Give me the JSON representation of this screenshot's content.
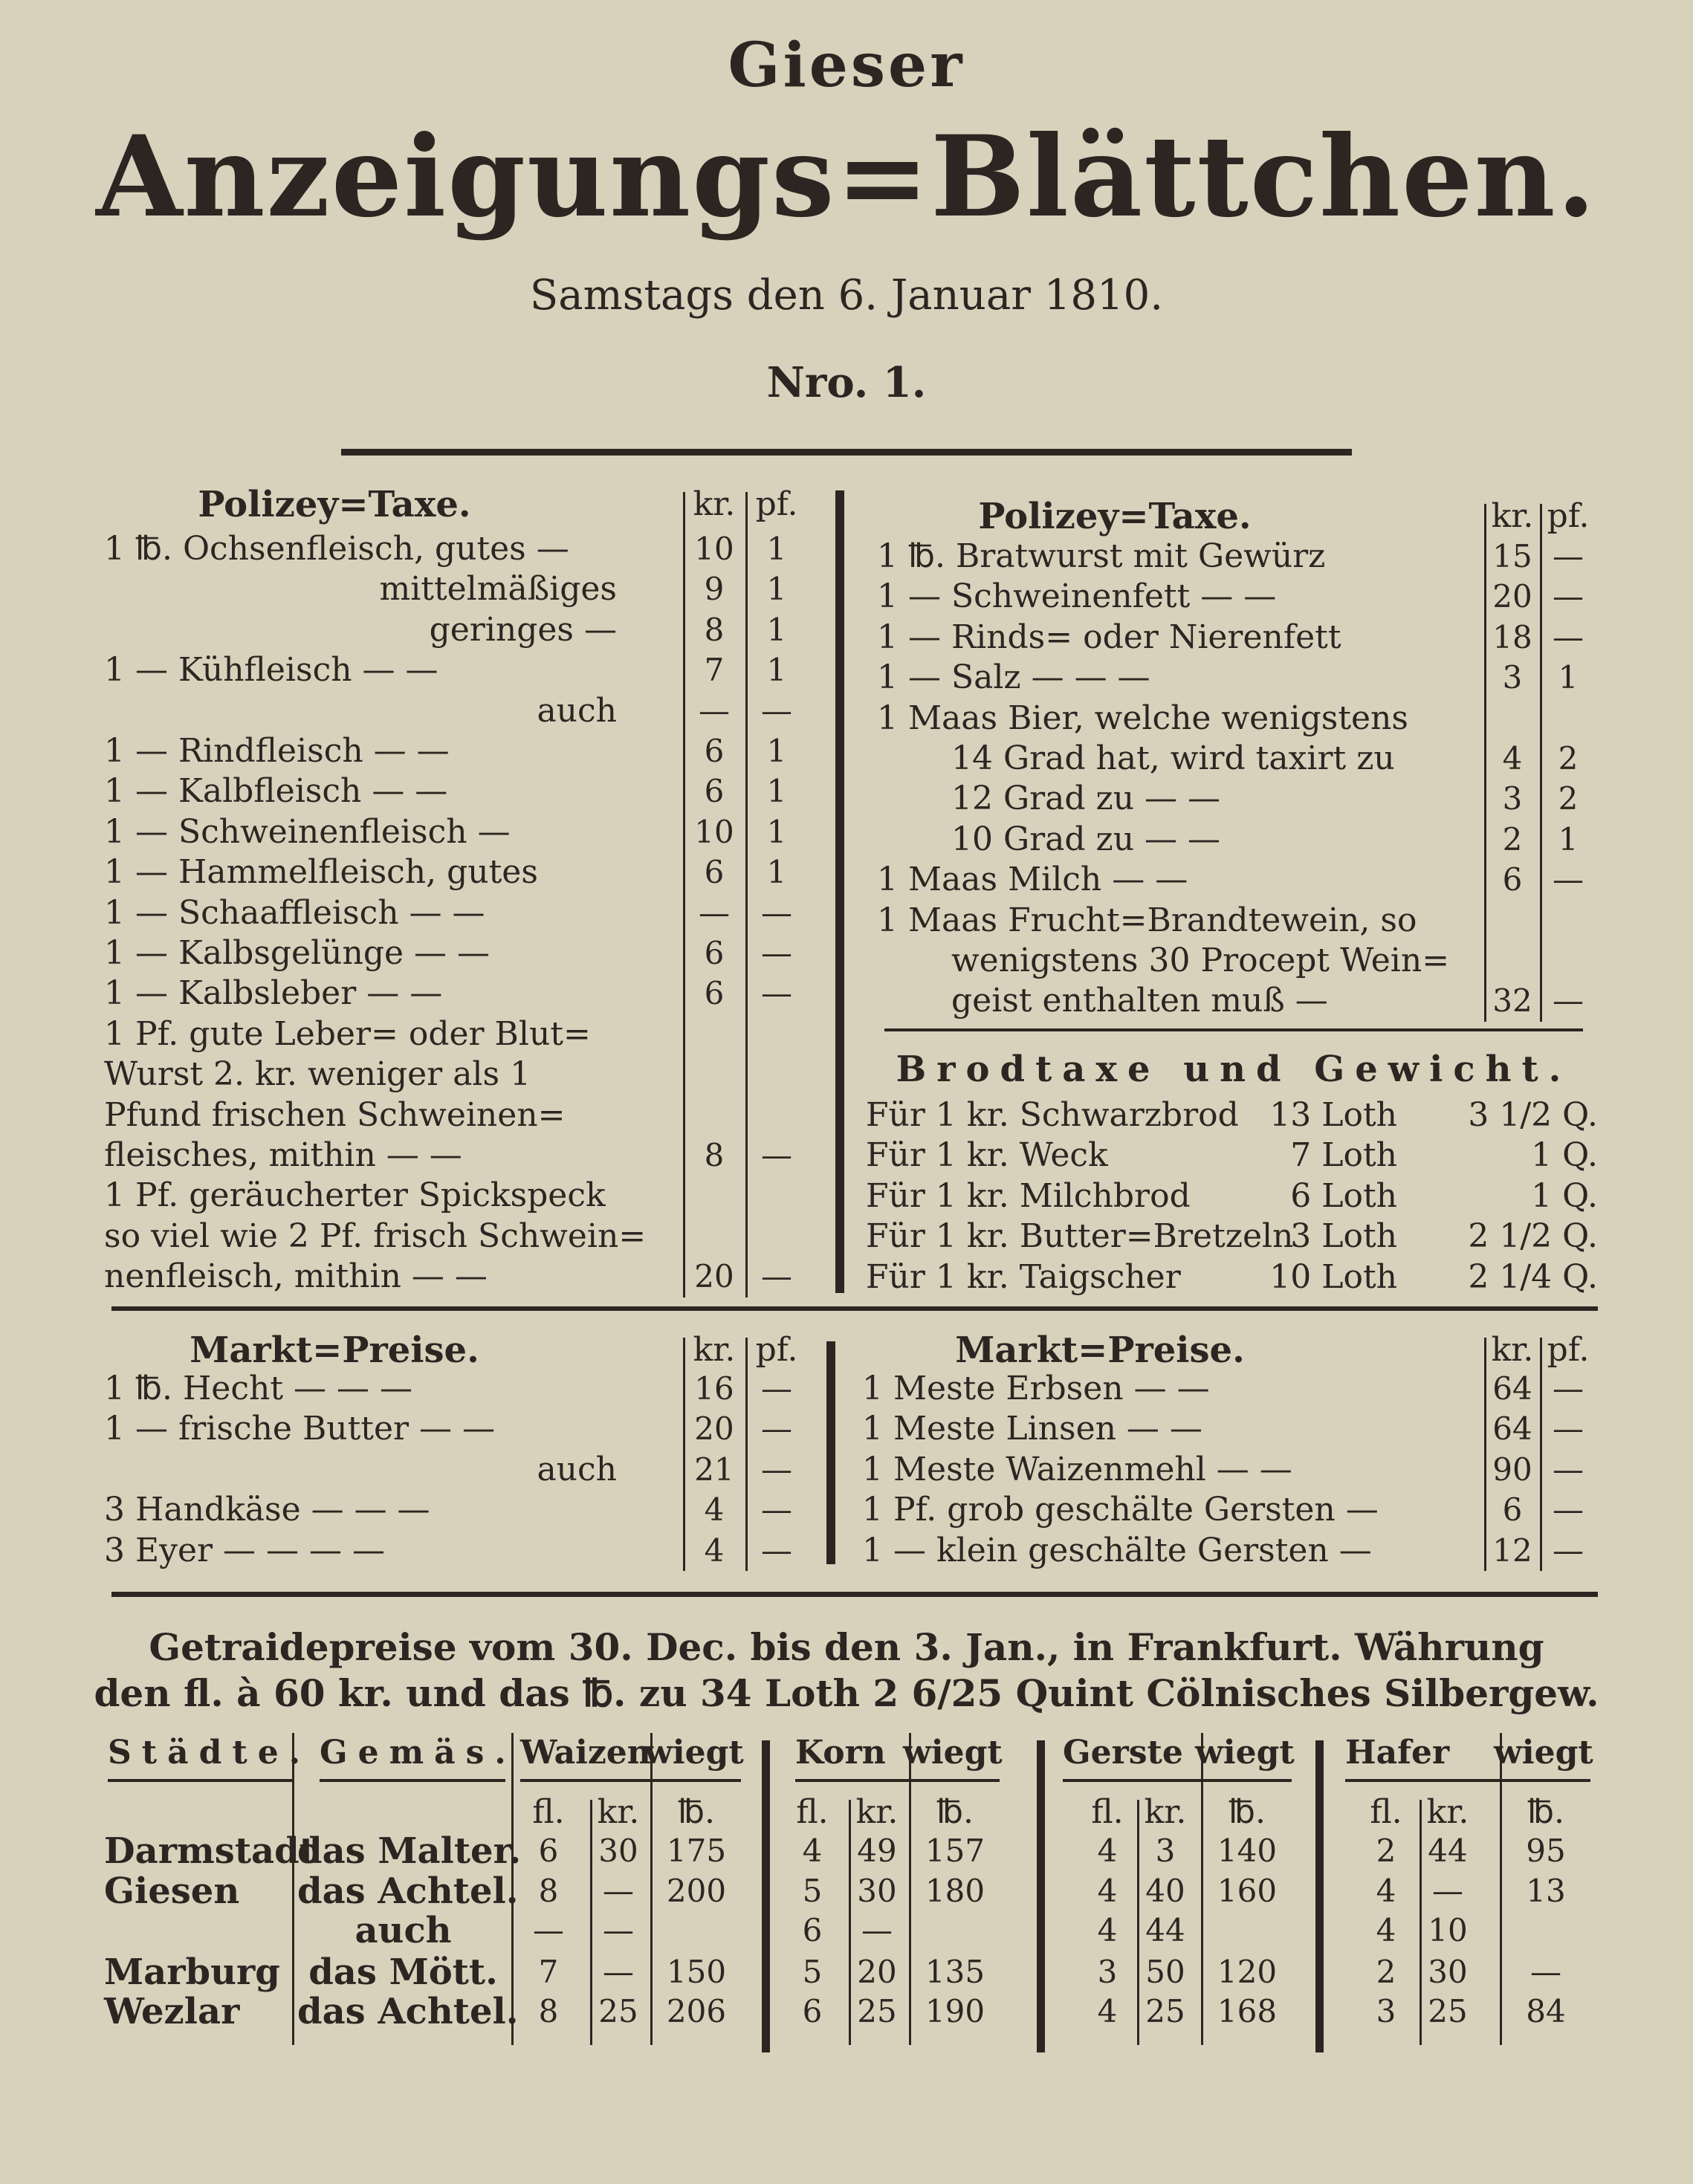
{
  "masthead": {
    "title_small": "Gieser",
    "title_large": "Anzeigungs=Blättchen.",
    "date": "Samstags den 6. Januar 1810.",
    "number": "Nro. 1."
  },
  "polizey_left": {
    "title": "Polizey=Taxe.",
    "col_kr": "kr.",
    "col_pf": "pf.",
    "rows": [
      {
        "label": "1 ℔. Ochsenfleisch, gutes —",
        "kr": "10",
        "pf": "1"
      },
      {
        "label": "mittelmäßiges",
        "kr": "9",
        "pf": "1"
      },
      {
        "label": "geringes —",
        "kr": "8",
        "pf": "1"
      },
      {
        "label": "1 — Kühfleisch     —     —",
        "kr": "7",
        "pf": "1"
      },
      {
        "label": "auch",
        "kr": "—",
        "pf": "—"
      },
      {
        "label": "1 — Rindfleisch     —     —",
        "kr": "6",
        "pf": "1"
      },
      {
        "label": "1 — Kalbfleisch     —     —",
        "kr": "6",
        "pf": "1"
      },
      {
        "label": "1 — Schweinenfleisch     —",
        "kr": "10",
        "pf": "1"
      },
      {
        "label": "1 — Hammelfleisch, gutes",
        "kr": "6",
        "pf": "1"
      },
      {
        "label": "1 — Schaaffleisch  —    —",
        "kr": "—",
        "pf": "—"
      },
      {
        "label": "1 — Kalbsgelünge —    —",
        "kr": "6",
        "pf": "—"
      },
      {
        "label": "1 — Kalbsleber    —    —",
        "kr": "6",
        "pf": "—"
      },
      {
        "label": "1 Pf. gute Leber= oder Blut=",
        "kr": "",
        "pf": ""
      },
      {
        "label": "Wurst 2. kr. weniger als 1",
        "kr": "",
        "pf": ""
      },
      {
        "label": "Pfund frischen Schweinen=",
        "kr": "",
        "pf": ""
      },
      {
        "label": "fleisches, mithin  —   —",
        "kr": "8",
        "pf": "—"
      },
      {
        "label": "1 Pf. geräucherter Spickspeck",
        "kr": "",
        "pf": ""
      },
      {
        "label": "so viel wie 2 Pf. frisch Schwein=",
        "kr": "",
        "pf": ""
      },
      {
        "label": "nenfleisch, mithin — —",
        "kr": "20",
        "pf": "—"
      }
    ]
  },
  "polizey_right": {
    "title": "Polizey=Taxe.",
    "col_kr": "kr.",
    "col_pf": "pf.",
    "rows": [
      {
        "label": "1 ℔. Bratwurst mit Gewürz",
        "kr": "15",
        "pf": "—"
      },
      {
        "label": "1 — Schweinenfett   —    —",
        "kr": "20",
        "pf": "—"
      },
      {
        "label": "1 — Rinds= oder Nierenfett",
        "kr": "18",
        "pf": "—"
      },
      {
        "label": "1 — Salz   —    —    —",
        "kr": "3",
        "pf": "1"
      },
      {
        "label": "1 Maas Bier, welche wenigstens",
        "kr": "",
        "pf": ""
      },
      {
        "label": "14 Grad hat, wird taxirt zu",
        "kr": "4",
        "pf": "2"
      },
      {
        "label": "12 Grad zu     —     —",
        "kr": "3",
        "pf": "2"
      },
      {
        "label": "10 Grad zu     —     —",
        "kr": "2",
        "pf": "1"
      },
      {
        "label": "1 Maas Milch     —     —",
        "kr": "6",
        "pf": "—"
      },
      {
        "label": "1 Maas Frucht=Brandtewein, so",
        "kr": "",
        "pf": ""
      },
      {
        "label": "wenigstens 30 Procept Wein=",
        "kr": "",
        "pf": ""
      },
      {
        "label": "geist enthalten muß     —",
        "kr": "32",
        "pf": "—"
      }
    ]
  },
  "brodtaxe": {
    "title": "Brodtaxe und Gewicht.",
    "rows": [
      {
        "item": "Für 1 kr. Schwarzbrod",
        "loth": "13 Loth",
        "q": "3 1/2 Q."
      },
      {
        "item": "Für 1 kr. Weck",
        "loth": "7 Loth",
        "q": "1 Q."
      },
      {
        "item": "Für 1 kr. Milchbrod",
        "loth": "6 Loth",
        "q": "1 Q."
      },
      {
        "item": "Für 1 kr. Butter=Bretzeln",
        "loth": "3 Loth",
        "q": "2 1/2 Q."
      },
      {
        "item": "Für 1 kr. Taigscher",
        "loth": "10 Loth",
        "q": "2 1/4 Q."
      }
    ]
  },
  "markt_left": {
    "title": "Markt=Preise.",
    "col_kr": "kr.",
    "col_pf": "pf.",
    "rows": [
      {
        "label": "1 ℔. Hecht   —    —    —",
        "kr": "16",
        "pf": "—"
      },
      {
        "label": "1 — frische Butter —   —",
        "kr": "20",
        "pf": "—"
      },
      {
        "label": "auch",
        "kr": "21",
        "pf": "—"
      },
      {
        "label": "3 Handkäse   —    —    —",
        "kr": "4",
        "pf": "—"
      },
      {
        "label": "3 Eyer  —   —   —   —",
        "kr": "4",
        "pf": "—"
      }
    ]
  },
  "markt_right": {
    "title": "Markt=Preise.",
    "col_kr": "kr.",
    "col_pf": "pf.",
    "rows": [
      {
        "label": "1 Meste Erbsen      —     —",
        "kr": "64",
        "pf": "—"
      },
      {
        "label": "1 Meste Linsen      —     —",
        "kr": "64",
        "pf": "—"
      },
      {
        "label": "1 Meste Waizenmehl —   —",
        "kr": "90",
        "pf": "—"
      },
      {
        "label": "1 Pf. grob geschälte Gersten —",
        "kr": "6",
        "pf": "—"
      },
      {
        "label": "1 — klein geschälte Gersten —",
        "kr": "12",
        "pf": "—"
      }
    ]
  },
  "getraide": {
    "line1": "Getraidepreise vom 30. Dec. bis den 3. Jan., in Frankfurt. Währung",
    "line2": "den fl. à 60 kr. und das ℔. zu 34 Loth 2 6/25 Quint Cölnisches Silbergew.",
    "headers": {
      "cities": "Städte.",
      "measure": "Gemäs.",
      "waizen": "Waizen",
      "korn": "Korn",
      "gerste": "Gerste",
      "hafer": "Hafer",
      "wiegt": "wiegt"
    },
    "units": {
      "fl": "fl.",
      "kr": "kr.",
      "lb": "℔."
    },
    "rows": [
      {
        "city": "Darmstadt",
        "measure": "das Malter.",
        "w": [
          "6",
          "30",
          "175"
        ],
        "k": [
          "4",
          "49",
          "157"
        ],
        "g": [
          "4",
          "3",
          "140"
        ],
        "h": [
          "2",
          "44",
          "95"
        ]
      },
      {
        "city": "Giesen",
        "measure": "das Achtel.",
        "w": [
          "8",
          "—",
          "200"
        ],
        "k": [
          "5",
          "30",
          "180"
        ],
        "g": [
          "4",
          "40",
          "160"
        ],
        "h": [
          "4",
          "—",
          "13"
        ]
      },
      {
        "city": "",
        "measure": "auch",
        "w": [
          "—",
          "—",
          ""
        ],
        "k": [
          "6",
          "—",
          ""
        ],
        "g": [
          "4",
          "44",
          ""
        ],
        "h": [
          "4",
          "10",
          ""
        ]
      },
      {
        "city": "Marburg",
        "measure": "das Mött.",
        "w": [
          "7",
          "—",
          "150"
        ],
        "k": [
          "5",
          "20",
          "135"
        ],
        "g": [
          "3",
          "50",
          "120"
        ],
        "h": [
          "2",
          "30",
          "—"
        ]
      },
      {
        "city": "Wezlar",
        "measure": "das Achtel.",
        "w": [
          "8",
          "25",
          "206"
        ],
        "k": [
          "6",
          "25",
          "190"
        ],
        "g": [
          "4",
          "25",
          "168"
        ],
        "h": [
          "3",
          "25",
          "84"
        ]
      }
    ]
  }
}
